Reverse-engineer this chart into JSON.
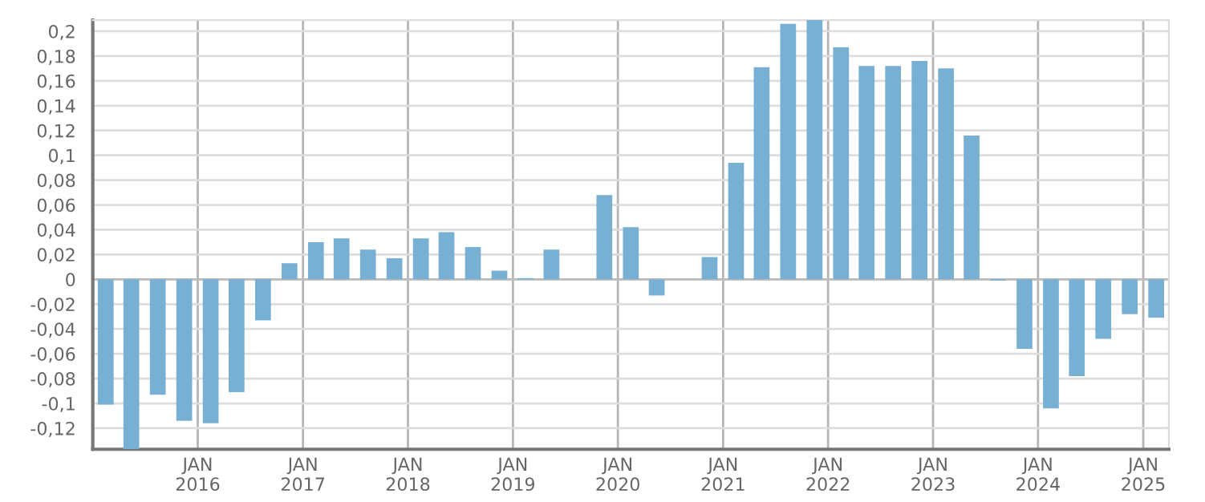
{
  "chart_data": {
    "type": "bar",
    "color": "#77b0d3",
    "x": [
      "2015-02-15",
      "2015-05-15",
      "2015-08-15",
      "2015-11-15",
      "2016-02-15",
      "2016-05-15",
      "2016-08-15",
      "2016-11-15",
      "2017-02-15",
      "2017-05-15",
      "2017-08-15",
      "2017-11-15",
      "2018-02-15",
      "2018-05-15",
      "2018-08-15",
      "2018-11-15",
      "2019-02-15",
      "2019-05-15",
      "2019-08-15",
      "2019-11-15",
      "2020-02-15",
      "2020-05-15",
      "2020-08-15",
      "2020-11-15",
      "2021-02-15",
      "2021-05-15",
      "2021-08-15",
      "2021-11-15",
      "2022-02-15",
      "2022-05-15",
      "2022-08-15",
      "2022-11-15",
      "2023-02-15",
      "2023-05-15",
      "2023-08-15",
      "2023-11-15",
      "2024-02-15",
      "2024-05-15",
      "2024-08-15",
      "2024-11-15",
      "2025-02-15"
    ],
    "values": [
      -0.101,
      -0.137,
      -0.093,
      -0.114,
      -0.116,
      -0.091,
      -0.033,
      0.013,
      0.03,
      0.033,
      0.024,
      0.017,
      0.033,
      0.038,
      0.026,
      0.007,
      0.001,
      0.024,
      null,
      0.068,
      0.042,
      -0.013,
      null,
      0.018,
      0.094,
      0.171,
      0.206,
      0.209,
      0.187,
      0.172,
      0.172,
      0.176,
      0.17,
      0.116,
      -0.001,
      -0.056,
      -0.104,
      -0.078,
      -0.048,
      -0.028,
      -0.031
    ],
    "xlim": [
      "2015-01-01",
      "2025-03-31"
    ],
    "xticks": [
      {
        "value": "2016-01-01",
        "label": "JAN\n2016"
      },
      {
        "value": "2017-01-01",
        "label": "JAN\n2017"
      },
      {
        "value": "2018-01-01",
        "label": "JAN\n2018"
      },
      {
        "value": "2019-01-01",
        "label": "JAN\n2019"
      },
      {
        "value": "2020-01-01",
        "label": "JAN\n2020"
      },
      {
        "value": "2021-01-01",
        "label": "JAN\n2021"
      },
      {
        "value": "2022-01-01",
        "label": "JAN\n2022"
      },
      {
        "value": "2023-01-01",
        "label": "JAN\n2023"
      },
      {
        "value": "2024-01-01",
        "label": "JAN\n2024"
      },
      {
        "value": "2025-01-01",
        "label": "JAN\n2025"
      }
    ],
    "ylim": [
      -0.137,
      0.209
    ],
    "yticks": [
      {
        "value": -0.12,
        "label": "-0,12"
      },
      {
        "value": -0.1,
        "label": "-0,1"
      },
      {
        "value": -0.08,
        "label": "-0,08"
      },
      {
        "value": -0.06,
        "label": "-0,06"
      },
      {
        "value": -0.04,
        "label": "-0,04"
      },
      {
        "value": -0.02,
        "label": "-0,02"
      },
      0,
      {
        "value": 0.02,
        "label": "0,02"
      },
      {
        "value": 0.04,
        "label": "0,04"
      },
      {
        "value": 0.06,
        "label": "0,06"
      },
      {
        "value": 0.08,
        "label": "0,08"
      },
      {
        "value": 0.1,
        "label": "0,1"
      },
      {
        "value": 0.12,
        "label": "0,12"
      },
      {
        "value": 0.14,
        "label": "0,14"
      },
      {
        "value": 0.16,
        "label": "0,16"
      },
      {
        "value": 0.18,
        "label": "0,18"
      },
      {
        "value": 0.2,
        "label": "0,2"
      }
    ],
    "grid": true,
    "legend": false
  }
}
